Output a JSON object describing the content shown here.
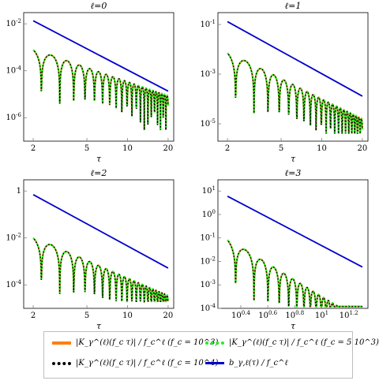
{
  "colors": {
    "orange": "#ff7f0e",
    "black": "#000000",
    "green": "#22ee22",
    "blue": "#0000cc",
    "tick": "#7f7f7f"
  },
  "legend": [
    {
      "label": "|K_γ^(ℓ)(f_c τ)| / f_c^ℓ  (f_c = 10^3)",
      "color": "#ff7f0e",
      "style": "solid",
      "icon": "orange-line-icon"
    },
    {
      "label": "|K_γ^(ℓ)(f_c τ)| / f_c^ℓ  (f_c = 5 10^3)",
      "color": "#22ee22",
      "style": "dotted",
      "icon": "green-dotted-line-icon"
    },
    {
      "label": "|K_γ^(ℓ)(f_c τ)| / f_c^ℓ  (f_c = 10^4)",
      "color": "#000000",
      "style": "dotted",
      "icon": "black-dotted-line-icon"
    },
    {
      "label": "b_γ,ℓ(τ) / f_c^ℓ",
      "color": "#0000cc",
      "style": "solid",
      "icon": "blue-line-icon"
    }
  ],
  "chart_data": [
    {
      "type": "line",
      "title": "ℓ=0",
      "xlabel": "τ",
      "ylabel": "",
      "x_scale": "log",
      "y_scale": "log",
      "xlim": [
        1.7,
        22
      ],
      "ylim": [
        1e-07,
        0.03
      ],
      "xticks": [
        {
          "v": 2,
          "label": "2"
        },
        {
          "v": 5,
          "label": "5"
        },
        {
          "v": 10,
          "label": "10"
        },
        {
          "v": 20,
          "label": "20"
        }
      ],
      "yticks": [
        {
          "v": 0.01,
          "label": "10^-2"
        },
        {
          "v": 0.0001,
          "label": "10^-4"
        },
        {
          "v": 1e-06,
          "label": "10^-6"
        }
      ],
      "bound": {
        "x": [
          2,
          20
        ],
        "y": [
          0.0135,
          1.35e-05
        ]
      },
      "oscillation": {
        "peak_start": 0.00085,
        "decay_power": 2.0,
        "first_zero": 2.3,
        "frequency": 1.0,
        "min_floor": 3e-07
      }
    },
    {
      "type": "line",
      "title": "ℓ=1",
      "xlabel": "τ",
      "ylabel": "",
      "x_scale": "log",
      "y_scale": "log",
      "xlim": [
        1.7,
        22
      ],
      "ylim": [
        2e-06,
        0.3
      ],
      "xticks": [
        {
          "v": 2,
          "label": "2"
        },
        {
          "v": 5,
          "label": "5"
        },
        {
          "v": 10,
          "label": "10"
        },
        {
          "v": 20,
          "label": "20"
        }
      ],
      "yticks": [
        {
          "v": 0.1,
          "label": "10^-1"
        },
        {
          "v": 0.001,
          "label": "10^-3"
        },
        {
          "v": 1e-05,
          "label": "10^-5"
        }
      ],
      "bound": {
        "x": [
          2,
          20
        ],
        "y": [
          0.13,
          0.00013
        ]
      },
      "oscillation": {
        "peak_start": 0.0078,
        "decay_power": 2.7,
        "first_zero": 2.3,
        "frequency": 1.0,
        "min_floor": 4e-06
      }
    },
    {
      "type": "line",
      "title": "ℓ=2",
      "xlabel": "τ",
      "ylabel": "",
      "x_scale": "log",
      "y_scale": "log",
      "xlim": [
        1.7,
        22
      ],
      "ylim": [
        1e-05,
        3
      ],
      "xticks": [
        {
          "v": 2,
          "label": "2"
        },
        {
          "v": 5,
          "label": "5"
        },
        {
          "v": 10,
          "label": "10"
        },
        {
          "v": 20,
          "label": "20"
        }
      ],
      "yticks": [
        {
          "v": 1,
          "label": "1"
        },
        {
          "v": 0.01,
          "label": "10^-2"
        },
        {
          "v": 0.0001,
          "label": "10^-4"
        }
      ],
      "bound": {
        "x": [
          2,
          20
        ],
        "y": [
          0.7,
          0.00052
        ]
      },
      "oscillation": {
        "peak_start": 0.011,
        "decay_power": 2.5,
        "first_zero": 2.3,
        "frequency": 1.0,
        "min_floor": 2e-05
      }
    },
    {
      "type": "line",
      "title": "ℓ=3",
      "xlabel": "τ",
      "ylabel": "",
      "x_scale": "log",
      "y_scale": "log",
      "xlim": [
        1.7,
        22
      ],
      "ylim": [
        0.0001,
        30
      ],
      "xticks": [
        {
          "v": 2.512,
          "label": "10^0.4"
        },
        {
          "v": 3.981,
          "label": "10^0.6"
        },
        {
          "v": 6.31,
          "label": "10^0.8"
        },
        {
          "v": 10,
          "label": "10^1"
        },
        {
          "v": 15.85,
          "label": "10^1.2"
        }
      ],
      "yticks": [
        {
          "v": 10,
          "label": "10^1"
        },
        {
          "v": 1,
          "label": "10^0"
        },
        {
          "v": 0.1,
          "label": "10^-1"
        },
        {
          "v": 0.01,
          "label": "10^-2"
        },
        {
          "v": 0.001,
          "label": "10^-3"
        },
        {
          "v": 0.0001,
          "label": "10^-4"
        }
      ],
      "bound": {
        "x": [
          2,
          20
        ],
        "y": [
          6,
          0.0058
        ]
      },
      "oscillation": {
        "peak_start": 0.09,
        "decay_power": 3.5,
        "first_zero": 2.3,
        "frequency": 1.0,
        "min_floor": 0.00012
      }
    }
  ]
}
